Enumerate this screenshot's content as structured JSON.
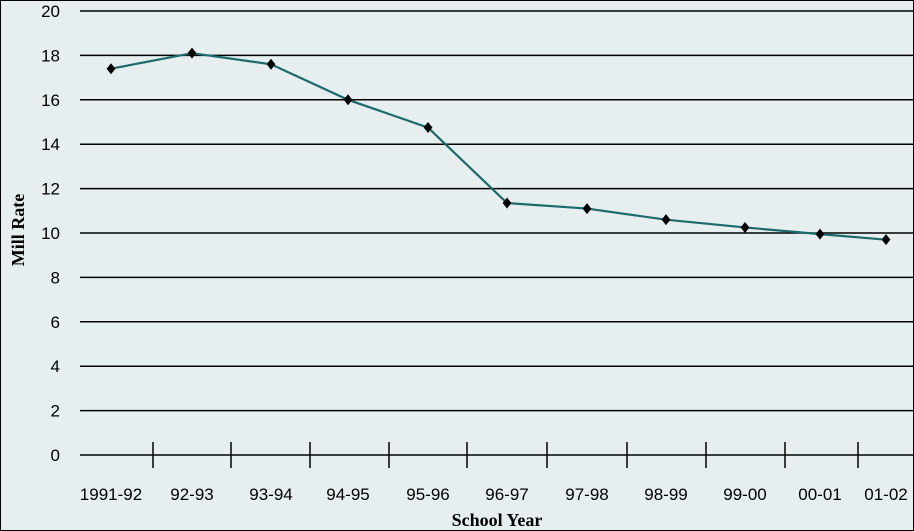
{
  "chart_data": {
    "type": "line",
    "title": "",
    "xlabel": "School Year",
    "ylabel": "Mill Rate",
    "categories": [
      "1991-92",
      "92-93",
      "93-94",
      "94-95",
      "95-96",
      "96-97",
      "97-98",
      "98-99",
      "99-00",
      "00-01",
      "01-02"
    ],
    "series": [
      {
        "values": [
          17.4,
          18.1,
          17.6,
          16.0,
          14.75,
          11.35,
          11.1,
          10.6,
          10.25,
          9.95,
          9.7
        ]
      }
    ],
    "ylim": [
      0,
      20
    ],
    "yticks": [
      "0",
      "2",
      "4",
      "6",
      "8",
      "10",
      "12",
      "14",
      "16",
      "18",
      "20"
    ],
    "grid": true,
    "line_color": "#1b6b6b",
    "marker": "diamond",
    "background_color": "#e6eef0"
  }
}
